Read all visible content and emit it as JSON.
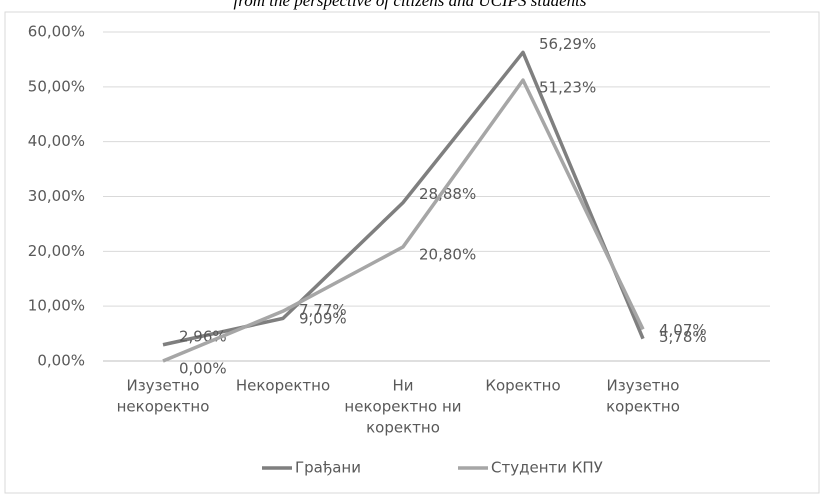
{
  "chart_data": {
    "type": "line",
    "title": "from the perspective of citizens and UCIPS students",
    "categories": [
      [
        "Изузетно",
        "некоректно"
      ],
      [
        "Некоректно"
      ],
      [
        "Ни",
        "некоректно ни",
        "коректно"
      ],
      [
        "Коректно"
      ],
      [
        "Изузетно",
        "коректно"
      ]
    ],
    "series": [
      {
        "name": "Грађани",
        "color": "#7f7f7f",
        "values": [
          2.96,
          7.77,
          28.88,
          56.29,
          4.07
        ],
        "value_labels": [
          "2,96%",
          "7,77%",
          "28,88%",
          "56,29%",
          "4,07%"
        ]
      },
      {
        "name": "Студенти КПУ",
        "color": "#a6a6a6",
        "values": [
          0,
          9.09,
          20.8,
          51.23,
          5.78
        ],
        "value_labels": [
          "0,00%",
          "9,09%",
          "20,80%",
          "51,23%",
          "5,78%"
        ]
      }
    ],
    "ylim": [
      0,
      60
    ],
    "yticks": [
      {
        "value": 0,
        "label": "0,00%"
      },
      {
        "value": 10,
        "label": "10,00%"
      },
      {
        "value": 20,
        "label": "20,00%"
      },
      {
        "value": 30,
        "label": "30,00%"
      },
      {
        "value": 40,
        "label": "40,00%"
      },
      {
        "value": 50,
        "label": "50,00%"
      },
      {
        "value": 60,
        "label": "60,00%"
      }
    ],
    "legend": "bottom"
  }
}
